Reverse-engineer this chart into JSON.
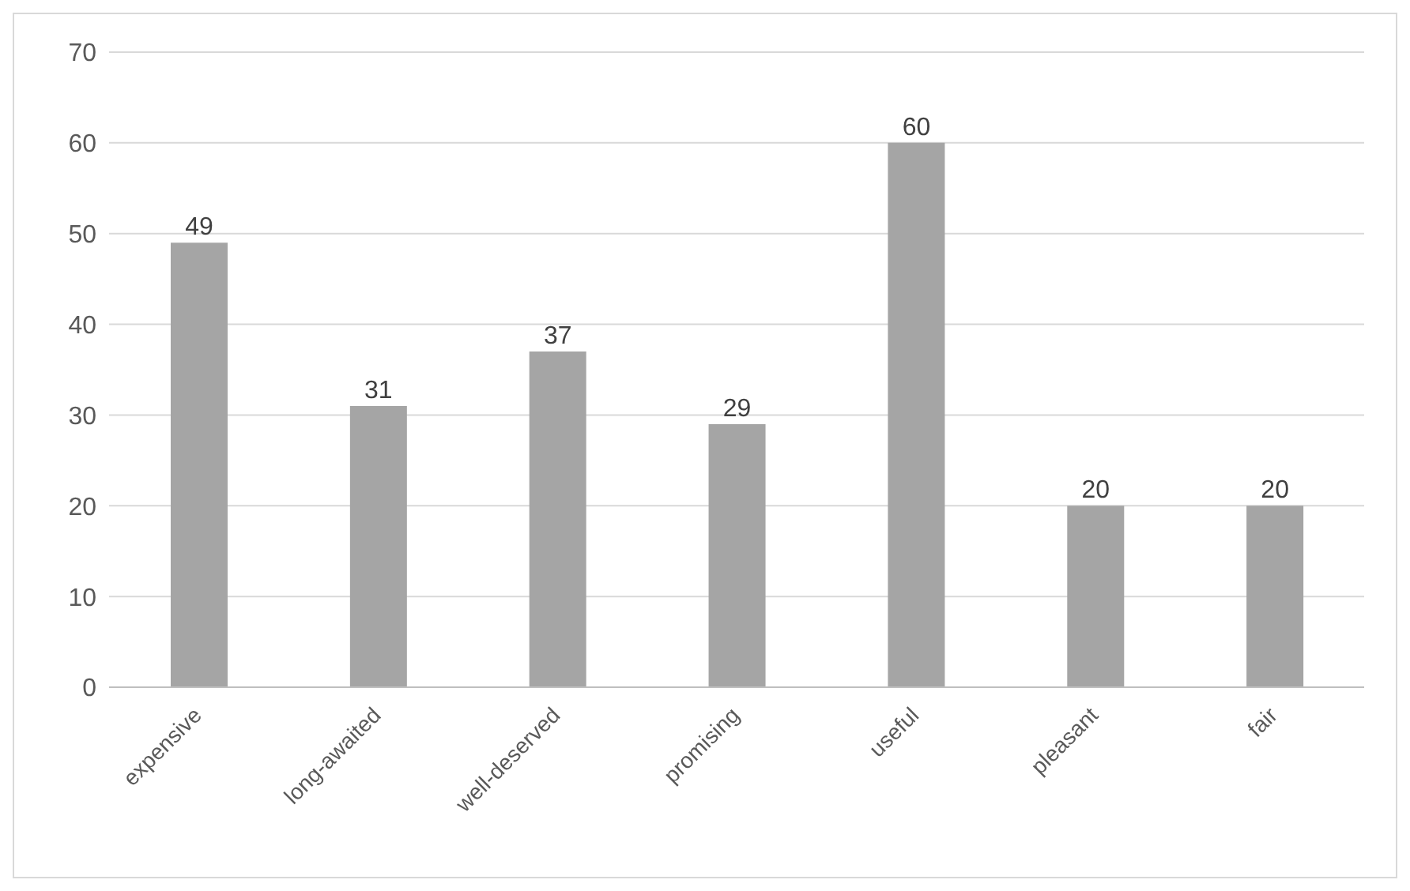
{
  "chart_data": {
    "type": "bar",
    "categories": [
      "expensive",
      "long-awaited",
      "well-deserved",
      "promising",
      "useful",
      "pleasant",
      "fair"
    ],
    "values": [
      49,
      31,
      37,
      29,
      60,
      20,
      20
    ],
    "color": "#a5a5a5",
    "ylim": [
      0,
      70
    ],
    "yticks": [
      0,
      10,
      20,
      30,
      40,
      50,
      60,
      70
    ],
    "grid": "y",
    "data_labels": true,
    "legend": false
  }
}
